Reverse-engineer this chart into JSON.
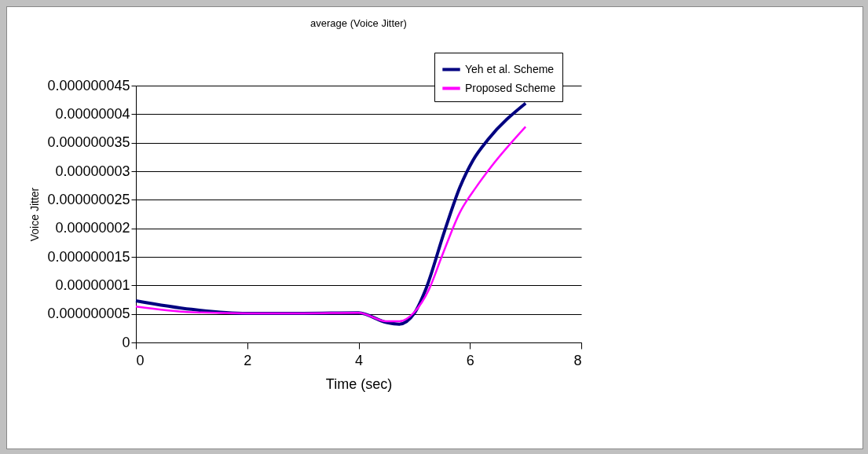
{
  "chart_data": {
    "type": "line",
    "title": "average (Voice Jitter)",
    "xlabel": "Time (sec)",
    "ylabel": "Voice Jitter",
    "xlim": [
      0,
      8
    ],
    "xticks": [
      0,
      2,
      4,
      6,
      8
    ],
    "ylim": [
      0,
      4.5e-08
    ],
    "yticks": [
      0,
      {
        "value": 5e-09,
        "label": "0.000000005"
      },
      {
        "value": 1e-08,
        "label": "0.00000001"
      },
      {
        "value": 1.5e-08,
        "label": "0.000000015"
      },
      {
        "value": 2e-08,
        "label": "0.00000002"
      },
      {
        "value": 2.5e-08,
        "label": "0.000000025"
      },
      {
        "value": 3e-08,
        "label": "0.00000003"
      },
      {
        "value": 3.5e-08,
        "label": "0.000000035"
      },
      {
        "value": 4e-08,
        "label": "0.00000004"
      },
      {
        "value": 4.5e-08,
        "label": "0.000000045"
      }
    ],
    "grid": "y",
    "legend": "top right",
    "marker": "none",
    "line_style": "solid",
    "series": [
      {
        "name": "Yeh et al. Scheme",
        "color": "#000080",
        "x": [
          0,
          1,
          2,
          3,
          4,
          4.5,
          4.73,
          5,
          5.21,
          5.54,
          5.82,
          6.06,
          6.32,
          7
        ],
        "values": [
          7.3e-09,
          5.8e-09,
          5.1e-09,
          5.1e-09,
          5.2e-09,
          3.5e-09,
          3.2e-09,
          5.1e-09,
          9.4e-09,
          1.94e-08,
          2.72e-08,
          3.2e-08,
          3.55e-08,
          4.19e-08
        ]
      },
      {
        "name": "Proposed Scheme",
        "color": "#ff00ff",
        "x": [
          0,
          1,
          2,
          3,
          4,
          4.5,
          4.73,
          5,
          5.26,
          5.5,
          5.82,
          6.11,
          6.39,
          7
        ],
        "values": [
          6.3e-09,
          5.3e-09,
          5.1e-09,
          5.1e-09,
          5.2e-09,
          3.7e-09,
          3.7e-09,
          5.3e-09,
          9.2e-09,
          1.52e-08,
          2.28e-08,
          2.72e-08,
          3.09e-08,
          3.78e-08
        ]
      }
    ]
  }
}
